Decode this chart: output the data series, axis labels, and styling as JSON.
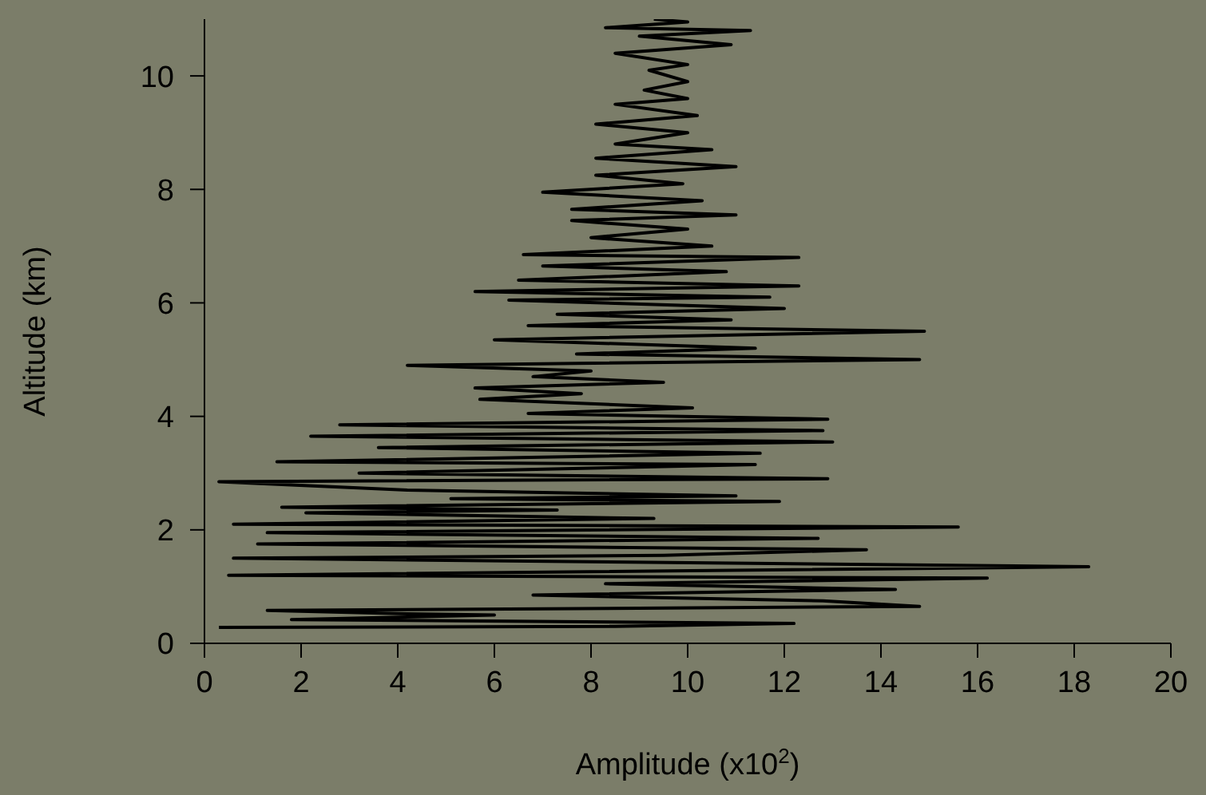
{
  "chart_data": {
    "type": "line",
    "xlabel": "Amplitude (x10$^{2}$)",
    "ylabel": "Altitude (km)",
    "xlim": [
      0,
      20
    ],
    "xticks": [
      0,
      2,
      4,
      6,
      8,
      10,
      12,
      14,
      16,
      18,
      20
    ],
    "ylim": [
      0,
      11
    ],
    "yticks": [
      0,
      2,
      4,
      6,
      8,
      10
    ],
    "grid": false,
    "legend": false,
    "marker": "none",
    "line_style": "solid",
    "series": [
      {
        "color": "#000000",
        "x": [
          0.3,
          8.5,
          12.2,
          1.8,
          6.0,
          4.2,
          1.3,
          14.8,
          12.8,
          6.8,
          14.3,
          8.3,
          16.2,
          0.5,
          18.3,
          0.6,
          9.5,
          13.7,
          1.1,
          12.7,
          1.3,
          15.6,
          0.6,
          9.3,
          2.1,
          7.3,
          1.6,
          11.9,
          5.1,
          11.0,
          4.2,
          0.3,
          12.9,
          3.2,
          11.4,
          1.5,
          11.5,
          3.6,
          13.0,
          2.2,
          12.8,
          2.8,
          12.9,
          6.7,
          10.1,
          5.7,
          7.8,
          5.6,
          9.5,
          6.8,
          8.0,
          4.2,
          14.8,
          7.7,
          11.4,
          6.0,
          14.9,
          6.7,
          10.9,
          7.3,
          12.0,
          6.3,
          11.7,
          5.6,
          12.3,
          6.5,
          10.8,
          7.0,
          12.3,
          6.6,
          10.5,
          8.0,
          10.0,
          7.6,
          11.0,
          7.6,
          10.3,
          7.0,
          9.9,
          8.1,
          11.0,
          8.1,
          10.5,
          8.5,
          10.0,
          8.1,
          10.2,
          8.5,
          10.0,
          9.1,
          10.0,
          9.2,
          10.0,
          8.5,
          10.9,
          9.0,
          11.3,
          8.3,
          10.0,
          9.3
        ],
        "values": [
          0.28,
          0.3,
          0.35,
          0.42,
          0.5,
          0.52,
          0.58,
          0.65,
          0.75,
          0.85,
          0.95,
          1.05,
          1.15,
          1.2,
          1.35,
          1.5,
          1.55,
          1.65,
          1.75,
          1.85,
          1.95,
          2.05,
          2.1,
          2.2,
          2.3,
          2.35,
          2.4,
          2.5,
          2.55,
          2.6,
          2.7,
          2.85,
          2.9,
          3.0,
          3.15,
          3.2,
          3.35,
          3.45,
          3.55,
          3.65,
          3.75,
          3.85,
          3.95,
          4.05,
          4.15,
          4.3,
          4.4,
          4.5,
          4.6,
          4.7,
          4.8,
          4.9,
          5.0,
          5.1,
          5.2,
          5.35,
          5.5,
          5.6,
          5.7,
          5.8,
          5.9,
          6.05,
          6.1,
          6.2,
          6.3,
          6.4,
          6.55,
          6.65,
          6.8,
          6.85,
          7.0,
          7.15,
          7.3,
          7.45,
          7.55,
          7.65,
          7.8,
          7.95,
          8.1,
          8.25,
          8.4,
          8.55,
          8.7,
          8.8,
          9.0,
          9.15,
          9.3,
          9.5,
          9.6,
          9.75,
          9.9,
          10.1,
          10.2,
          10.4,
          10.55,
          10.7,
          10.8,
          10.85,
          10.95,
          11.0
        ]
      }
    ]
  }
}
